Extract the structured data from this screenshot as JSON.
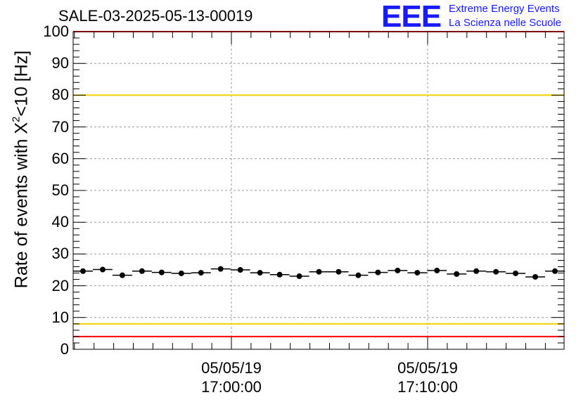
{
  "title": "SALE-03-2025-05-13-00019",
  "logo": {
    "mark": "EEE",
    "line1": "Extreme Energy Events",
    "line2": "La Scienza nelle Scuole",
    "color": "#1a1aff"
  },
  "chart_data": {
    "type": "scatter",
    "title": "SALE-03-2025-05-13-00019",
    "ylabel_prefix": "Rate of events with X",
    "ylabel_sup": "2",
    "ylabel_suffix": "<10 [Hz]",
    "ylim": [
      0,
      100
    ],
    "yticks": [
      "0",
      "10",
      "20",
      "30",
      "40",
      "50",
      "60",
      "70",
      "80",
      "90",
      "100"
    ],
    "xtick_labels": [
      {
        "date": "05/05/19",
        "time": "17:00:00"
      },
      {
        "date": "05/05/19",
        "time": "17:10:00"
      }
    ],
    "grid": true,
    "threshold_lines": [
      {
        "value": 100,
        "color": "#ff0000"
      },
      {
        "value": 80,
        "color": "#f5d000"
      },
      {
        "value": 8,
        "color": "#f5d000"
      },
      {
        "value": 4,
        "color": "#ff0000"
      }
    ],
    "series": [
      {
        "name": "rate",
        "color": "#000000",
        "values": [
          24.6,
          25.1,
          23.3,
          24.6,
          24.2,
          23.9,
          24.1,
          25.3,
          25.0,
          24.1,
          23.5,
          23.0,
          24.4,
          24.4,
          23.3,
          24.2,
          24.8,
          24.1,
          24.8,
          23.7,
          24.6,
          24.4,
          23.9,
          22.8,
          24.6
        ]
      }
    ]
  }
}
